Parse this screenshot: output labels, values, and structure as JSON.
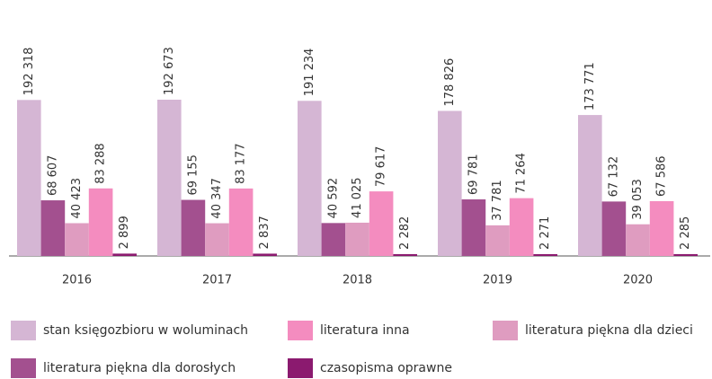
{
  "chart_data": {
    "type": "bar",
    "categories": [
      "2016",
      "2017",
      "2018",
      "2019",
      "2020"
    ],
    "series": [
      {
        "name": "stan księgozbioru w woluminach",
        "color": "#d5b6d4",
        "values": [
          192318,
          192673,
          191234,
          178826,
          173771
        ],
        "value_labels": [
          "192 318",
          "192 673",
          "191 234",
          "178 826",
          "173 771"
        ]
      },
      {
        "name": "literatura piękna dla dorosłych",
        "color": "#a3508f",
        "values": [
          68607,
          69155,
          40592,
          69781,
          67132
        ],
        "value_labels": [
          "68 607",
          "69 155",
          "40 592",
          "69 781",
          "67 132"
        ]
      },
      {
        "name": "literatura piękna dla dzieci",
        "color": "#df9cc0",
        "values": [
          40423,
          40347,
          41025,
          37781,
          39053
        ],
        "value_labels": [
          "40 423",
          "40 347",
          "41 025",
          "37 781",
          "39 053"
        ]
      },
      {
        "name": "literatura inna",
        "color": "#f48cbf",
        "values": [
          83288,
          83177,
          79617,
          71264,
          67586
        ],
        "value_labels": [
          "83 288",
          "83 177",
          "79 617",
          "71 264",
          "67 586"
        ]
      },
      {
        "name": "czasopisma oprawne",
        "color": "#8b1a6f",
        "values": [
          2899,
          2837,
          2282,
          2271,
          2285
        ],
        "value_labels": [
          "2 899",
          "2 837",
          "2 282",
          "2 271",
          "2 285"
        ]
      }
    ]
  }
}
